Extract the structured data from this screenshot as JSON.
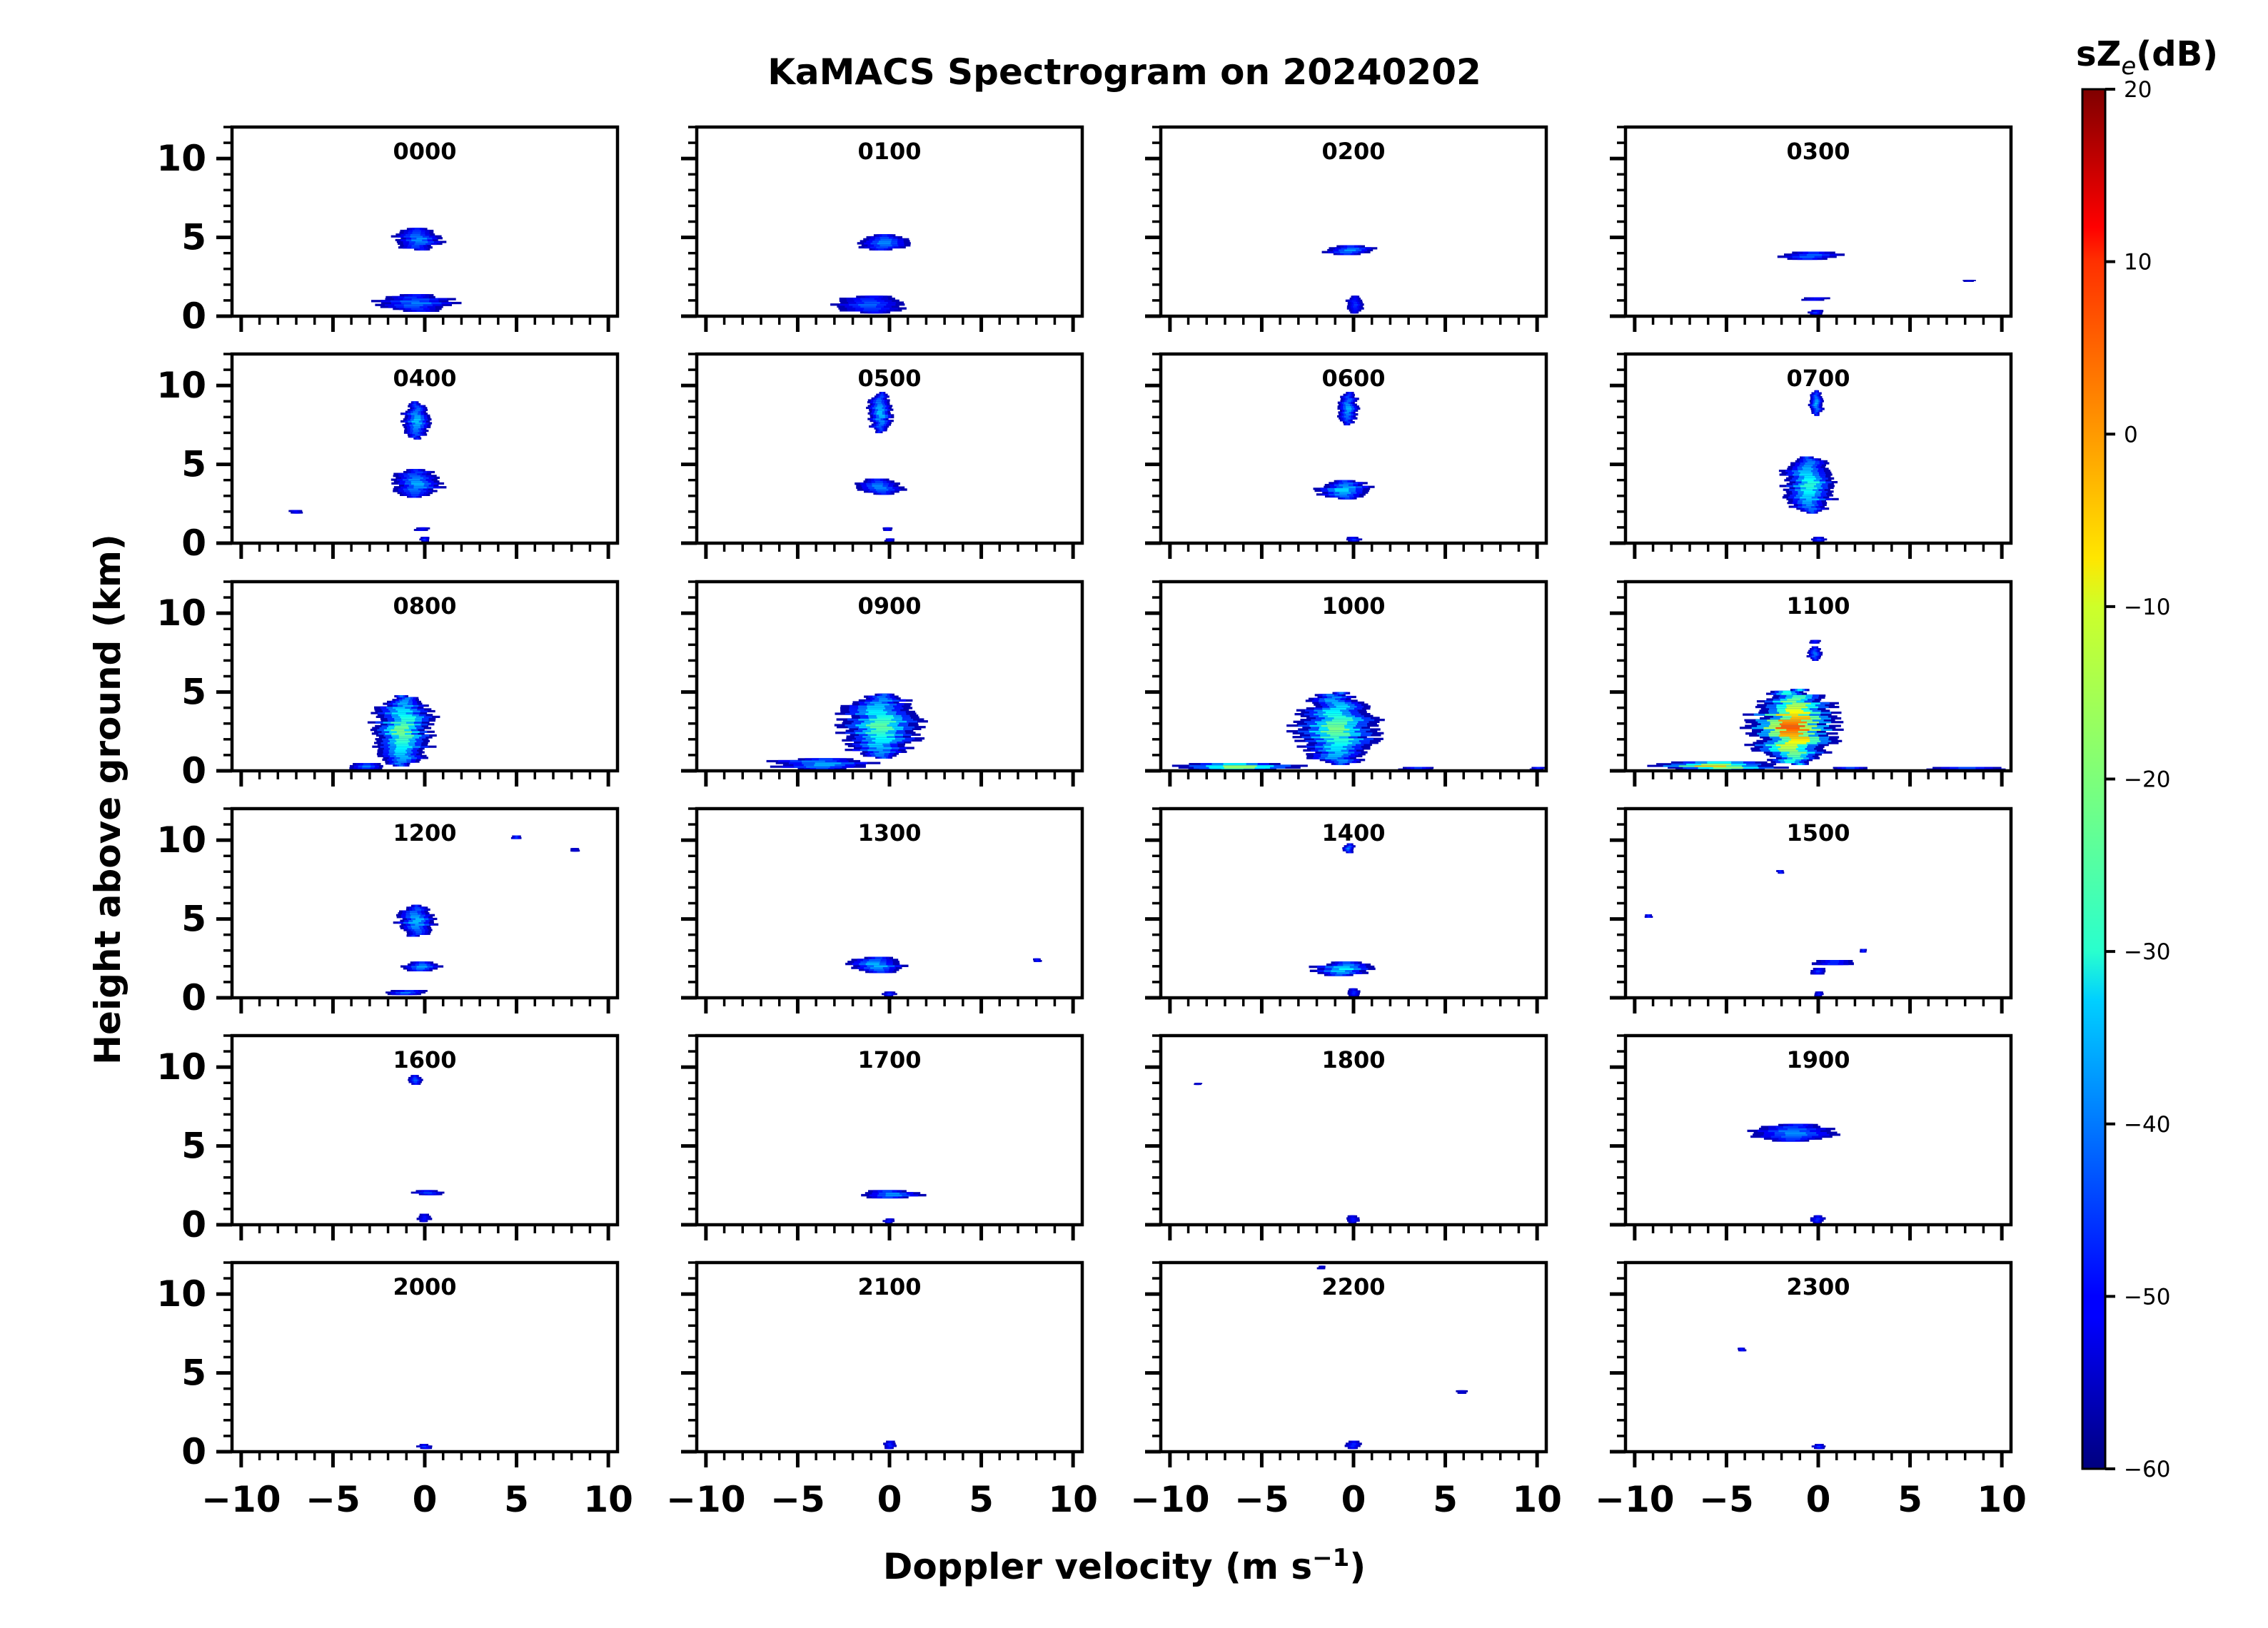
{
  "chart_data": {
    "type": "heatmap",
    "title": "KaMACS Spectrogram on 20240202",
    "xlabel": "Doppler velocity (m s",
    "xlabel_sup": "−1",
    "xlabel_close": ")",
    "ylabel": "Height above ground (km)",
    "colorbar_label_main": "sZ",
    "colorbar_label_sub": "e",
    "colorbar_label_unit": "(dB)",
    "xlim": [
      -10.5,
      10.5
    ],
    "ylim": [
      0,
      12
    ],
    "x_major_ticks": [
      -10,
      -5,
      0,
      5,
      10
    ],
    "x_tick_labels": [
      "−10",
      "−5",
      "0",
      "5",
      "10"
    ],
    "y_major_ticks": [
      0,
      5,
      10
    ],
    "y_tick_labels": [
      "0",
      "5",
      "10"
    ],
    "colorbar_range": [
      -60,
      20
    ],
    "colorbar_ticks": [
      20,
      10,
      0,
      -10,
      -20,
      -30,
      -40,
      -50,
      -60
    ],
    "colorbar_tick_labels": [
      "20",
      "10",
      "0",
      "−10",
      "−20",
      "−30",
      "−40",
      "−50",
      "−60"
    ],
    "colormap": "jet",
    "grid": false,
    "panels": [
      {
        "label": "0000",
        "echoes": [
          {
            "h0": 4.2,
            "h1": 5.6,
            "v0": -1.6,
            "v1": 1.0,
            "peak": -38
          },
          {
            "h0": 0.3,
            "h1": 1.4,
            "v0": -2.5,
            "v1": 1.5,
            "peak": -40
          }
        ]
      },
      {
        "label": "0100",
        "echoes": [
          {
            "h0": 4.2,
            "h1": 5.2,
            "v0": -1.8,
            "v1": 1.2,
            "peak": -38
          },
          {
            "h0": 0.2,
            "h1": 1.3,
            "v0": -3.0,
            "v1": 1.2,
            "peak": -42
          }
        ]
      },
      {
        "label": "0200",
        "echoes": [
          {
            "h0": 3.9,
            "h1": 4.5,
            "v0": -1.6,
            "v1": 1.1,
            "peak": -38
          },
          {
            "h0": 0.2,
            "h1": 1.3,
            "v0": -0.4,
            "v1": 0.6,
            "peak": -46
          }
        ]
      },
      {
        "label": "0300",
        "echoes": [
          {
            "h0": 3.6,
            "h1": 4.1,
            "v0": -2.0,
            "v1": 1.3,
            "peak": -40
          },
          {
            "h0": 1.0,
            "h1": 1.2,
            "v0": -1.0,
            "v1": 0.6,
            "peak": -48
          },
          {
            "h0": 0.1,
            "h1": 0.4,
            "v0": -0.6,
            "v1": 0.4,
            "peak": -46
          },
          {
            "h0": 2.2,
            "h1": 2.3,
            "v0": 7.8,
            "v1": 8.6,
            "peak": -52
          }
        ]
      },
      {
        "label": "0400",
        "echoes": [
          {
            "h0": 6.6,
            "h1": 9.0,
            "v0": -1.2,
            "v1": 0.3,
            "peak": -34
          },
          {
            "h0": 2.9,
            "h1": 4.7,
            "v0": -1.8,
            "v1": 0.9,
            "peak": -36
          },
          {
            "h0": 0.8,
            "h1": 1.0,
            "v0": -0.6,
            "v1": 0.3,
            "peak": -48
          },
          {
            "h0": 0.1,
            "h1": 0.4,
            "v0": -0.3,
            "v1": 0.3,
            "peak": -46
          },
          {
            "h0": 1.9,
            "h1": 2.1,
            "v0": -7.4,
            "v1": -6.6,
            "peak": -48
          }
        ]
      },
      {
        "label": "0500",
        "echoes": [
          {
            "h0": 7.0,
            "h1": 9.6,
            "v0": -1.2,
            "v1": 0.2,
            "peak": -34
          },
          {
            "h0": 3.1,
            "h1": 4.1,
            "v0": -1.8,
            "v1": 0.9,
            "peak": -38
          },
          {
            "h0": 0.8,
            "h1": 1.0,
            "v0": -0.4,
            "v1": 0.2,
            "peak": -48
          },
          {
            "h0": 0.1,
            "h1": 0.3,
            "v0": -0.3,
            "v1": 0.3,
            "peak": -48
          }
        ]
      },
      {
        "label": "0600",
        "echoes": [
          {
            "h0": 7.5,
            "h1": 9.6,
            "v0": -0.9,
            "v1": 0.3,
            "peak": -36
          },
          {
            "h0": 2.8,
            "h1": 4.0,
            "v0": -1.9,
            "v1": 1.0,
            "peak": -32
          },
          {
            "h0": 0.1,
            "h1": 0.4,
            "v0": -0.4,
            "v1": 0.4,
            "peak": -46
          }
        ]
      },
      {
        "label": "0700",
        "echoes": [
          {
            "h0": 8.1,
            "h1": 9.7,
            "v0": -0.5,
            "v1": 0.3,
            "peak": -36
          },
          {
            "h0": 1.9,
            "h1": 5.5,
            "v0": -2.0,
            "v1": 1.0,
            "peak": -26
          },
          {
            "h0": 0.1,
            "h1": 0.4,
            "v0": -0.4,
            "v1": 0.4,
            "peak": -46
          }
        ]
      },
      {
        "label": "0800",
        "echoes": [
          {
            "h0": 0.3,
            "h1": 4.8,
            "v0": -3.0,
            "v1": 0.6,
            "peak": -20
          },
          {
            "h0": 0.1,
            "h1": 0.5,
            "v0": -4.2,
            "v1": -2.0,
            "peak": -40
          }
        ]
      },
      {
        "label": "0900",
        "echoes": [
          {
            "h0": 0.8,
            "h1": 4.9,
            "v0": -2.8,
            "v1": 1.7,
            "peak": -22
          },
          {
            "h0": 0.1,
            "h1": 0.8,
            "v0": -6.5,
            "v1": -1.0,
            "peak": -34
          }
        ]
      },
      {
        "label": "1000",
        "echoes": [
          {
            "h0": 0.4,
            "h1": 5.0,
            "v0": -3.2,
            "v1": 1.4,
            "peak": -20
          },
          {
            "h0": 0.05,
            "h1": 0.5,
            "v0": -10.0,
            "v1": -2.0,
            "peak": -12
          },
          {
            "h0": 0.05,
            "h1": 0.25,
            "v0": 2.5,
            "v1": 4.5,
            "peak": -42
          },
          {
            "h0": 0.05,
            "h1": 0.25,
            "v0": 9.5,
            "v1": 10.5,
            "peak": -44
          }
        ]
      },
      {
        "label": "1100",
        "echoes": [
          {
            "h0": 0.4,
            "h1": 5.2,
            "v0": -3.8,
            "v1": 1.2,
            "peak": 4
          },
          {
            "h0": 7.0,
            "h1": 7.9,
            "v0": -0.6,
            "v1": 0.2,
            "peak": -40
          },
          {
            "h0": 8.1,
            "h1": 8.3,
            "v0": -0.5,
            "v1": 0.2,
            "peak": -46
          },
          {
            "h0": 0.05,
            "h1": 0.6,
            "v0": -9.5,
            "v1": -1.5,
            "peak": -6
          },
          {
            "h0": 0.05,
            "h1": 0.25,
            "v0": 0.5,
            "v1": 3.0,
            "peak": -40
          },
          {
            "h0": 0.05,
            "h1": 0.25,
            "v0": 5.5,
            "v1": 10.3,
            "peak": -40
          }
        ]
      },
      {
        "label": "1200",
        "echoes": [
          {
            "h0": 3.9,
            "h1": 5.9,
            "v0": -1.5,
            "v1": 0.6,
            "peak": -34
          },
          {
            "h0": 1.7,
            "h1": 2.3,
            "v0": -1.2,
            "v1": 1.0,
            "peak": -36
          },
          {
            "h0": 0.2,
            "h1": 0.5,
            "v0": -2.3,
            "v1": 0.3,
            "peak": -40
          },
          {
            "h0": 10.1,
            "h1": 10.3,
            "v0": 4.7,
            "v1": 5.3,
            "peak": -42
          },
          {
            "h0": 9.3,
            "h1": 9.5,
            "v0": 7.9,
            "v1": 8.5,
            "peak": -52
          }
        ]
      },
      {
        "label": "1300",
        "echoes": [
          {
            "h0": 1.6,
            "h1": 2.6,
            "v0": -2.5,
            "v1": 1.0,
            "peak": -34
          },
          {
            "h0": 0.1,
            "h1": 0.4,
            "v0": -0.4,
            "v1": 0.4,
            "peak": -46
          },
          {
            "h0": 2.3,
            "h1": 2.5,
            "v0": 7.8,
            "v1": 8.3,
            "peak": -46
          }
        ]
      },
      {
        "label": "1400",
        "echoes": [
          {
            "h0": 9.2,
            "h1": 9.8,
            "v0": -0.6,
            "v1": 0.1,
            "peak": -40
          },
          {
            "h0": 1.4,
            "h1": 2.3,
            "v0": -2.3,
            "v1": 1.2,
            "peak": -30
          },
          {
            "h0": 0.1,
            "h1": 0.6,
            "v0": -0.4,
            "v1": 0.4,
            "peak": -46
          }
        ]
      },
      {
        "label": "1500",
        "echoes": [
          {
            "h0": 2.1,
            "h1": 2.4,
            "v0": -0.5,
            "v1": 2.2,
            "peak": -44
          },
          {
            "h0": 1.5,
            "h1": 1.9,
            "v0": -0.5,
            "v1": 0.5,
            "peak": -46
          },
          {
            "h0": 0.1,
            "h1": 0.4,
            "v0": -0.3,
            "v1": 0.3,
            "peak": -48
          },
          {
            "h0": 7.9,
            "h1": 8.1,
            "v0": -2.3,
            "v1": -1.8,
            "peak": -44
          },
          {
            "h0": 5.1,
            "h1": 5.3,
            "v0": -9.5,
            "v1": -9.0,
            "peak": -44
          },
          {
            "h0": 2.9,
            "h1": 3.1,
            "v0": 2.2,
            "v1": 2.7,
            "peak": -44
          }
        ]
      },
      {
        "label": "1600",
        "echoes": [
          {
            "h0": 8.9,
            "h1": 9.5,
            "v0": -0.9,
            "v1": -0.1,
            "peak": -42
          },
          {
            "h0": 1.9,
            "h1": 2.2,
            "v0": -0.6,
            "v1": 1.1,
            "peak": -44
          },
          {
            "h0": 0.2,
            "h1": 0.7,
            "v0": -0.4,
            "v1": 0.4,
            "peak": -48
          }
        ]
      },
      {
        "label": "1700",
        "echoes": [
          {
            "h0": 1.7,
            "h1": 2.2,
            "v0": -1.8,
            "v1": 1.8,
            "peak": -36
          },
          {
            "h0": 0.1,
            "h1": 0.4,
            "v0": -0.3,
            "v1": 0.3,
            "peak": -48
          }
        ]
      },
      {
        "label": "1800",
        "echoes": [
          {
            "h0": 0.1,
            "h1": 0.6,
            "v0": -0.4,
            "v1": 0.4,
            "peak": -48
          },
          {
            "h0": 8.9,
            "h1": 9.0,
            "v0": -8.7,
            "v1": -8.2,
            "peak": -52
          }
        ]
      },
      {
        "label": "1900",
        "echoes": [
          {
            "h0": 5.3,
            "h1": 6.4,
            "v0": -3.8,
            "v1": 0.8,
            "peak": -38
          },
          {
            "h0": 0.1,
            "h1": 0.6,
            "v0": -0.4,
            "v1": 0.4,
            "peak": -46
          }
        ]
      },
      {
        "label": "2000",
        "echoes": [
          {
            "h0": 0.2,
            "h1": 0.5,
            "v0": -0.4,
            "v1": 0.4,
            "peak": -46
          }
        ]
      },
      {
        "label": "2100",
        "echoes": [
          {
            "h0": 0.2,
            "h1": 0.7,
            "v0": -0.4,
            "v1": 0.4,
            "peak": -46
          }
        ]
      },
      {
        "label": "2200",
        "echoes": [
          {
            "h0": 0.2,
            "h1": 0.7,
            "v0": -0.5,
            "v1": 0.4,
            "peak": -46
          },
          {
            "h0": 11.6,
            "h1": 11.8,
            "v0": -2.0,
            "v1": -1.5,
            "peak": -52
          },
          {
            "h0": 3.7,
            "h1": 3.9,
            "v0": 5.5,
            "v1": 6.2,
            "peak": -52
          }
        ]
      },
      {
        "label": "2300",
        "echoes": [
          {
            "h0": 0.2,
            "h1": 0.5,
            "v0": -0.4,
            "v1": 0.4,
            "peak": -46
          },
          {
            "h0": 6.4,
            "h1": 6.6,
            "v0": -4.4,
            "v1": -3.9,
            "peak": -46
          }
        ]
      }
    ]
  }
}
